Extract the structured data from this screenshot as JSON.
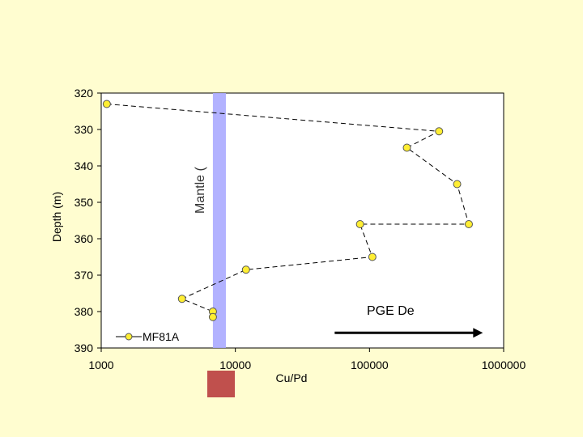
{
  "chart_data": {
    "type": "scatter",
    "xlabel": "Cu/Pd",
    "ylabel": "Depth (m)",
    "x_scale": "log",
    "xlim": [
      1000,
      1000000
    ],
    "ylim": [
      390,
      320
    ],
    "x_ticks": [
      "1000",
      "10000",
      "100000",
      "1000000"
    ],
    "y_ticks": [
      "320",
      "330",
      "340",
      "350",
      "360",
      "370",
      "380",
      "390"
    ],
    "series": [
      {
        "name": "MF81A",
        "line_style": "dashed",
        "marker_color": "#ffee33",
        "points": [
          {
            "x": 1100,
            "y": 323
          },
          {
            "x": 330000,
            "y": 330.5
          },
          {
            "x": 190000,
            "y": 335
          },
          {
            "x": 450000,
            "y": 345
          },
          {
            "x": 550000,
            "y": 356
          },
          {
            "x": 85000,
            "y": 356
          },
          {
            "x": 105000,
            "y": 365
          },
          {
            "x": 12000,
            "y": 368.5
          },
          {
            "x": 4000,
            "y": 376.5
          },
          {
            "x": 6800,
            "y": 380
          },
          {
            "x": 6800,
            "y": 381.5
          }
        ]
      }
    ],
    "band": {
      "label": "Mantle (",
      "x_min": 6800,
      "x_max": 8500,
      "color": "#aaaaff"
    },
    "annotation": {
      "text": "PGE De",
      "arrow_from_x": 55000,
      "arrow_to_x": 700000,
      "arrow_y": 382.5
    },
    "legend_position": "bottom-left",
    "grid": false
  },
  "colors": {
    "background": "#fffdd0",
    "plot_background": "#ffffff",
    "legend_swatch": "#c0504d"
  }
}
